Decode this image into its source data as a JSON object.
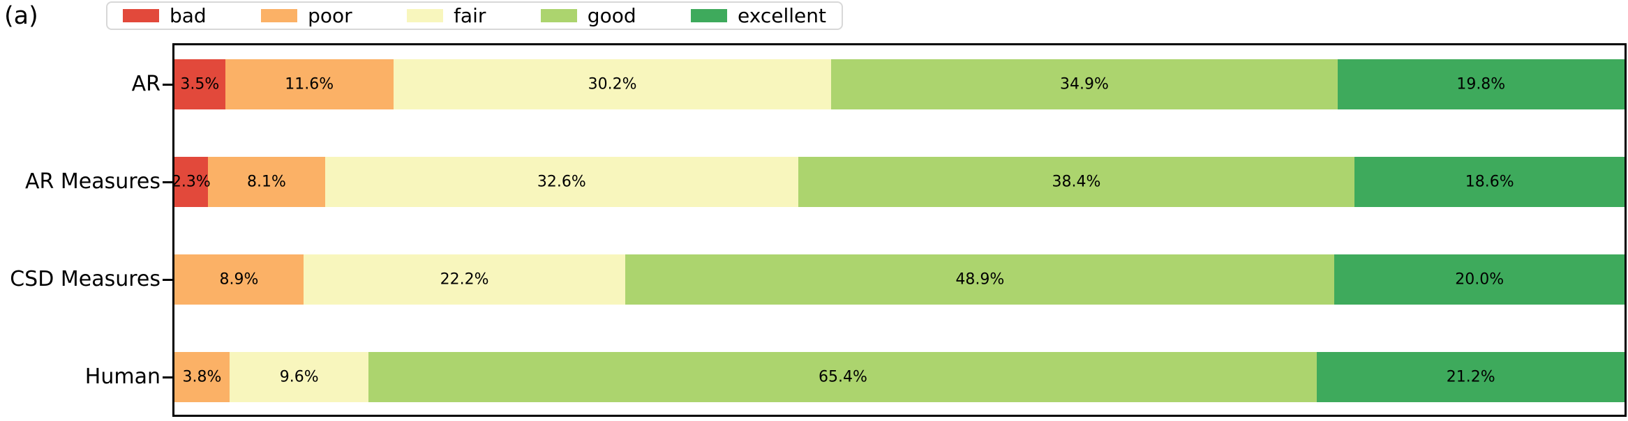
{
  "figure_label": "(a)",
  "colors": {
    "bad": "#e2493b",
    "poor": "#fbb166",
    "fair": "#f8f6bd",
    "good": "#acd46e",
    "excellent": "#3eaa5c",
    "axis_border": "#000000",
    "legend_border": "#d8d8d8",
    "label_text": "#000000"
  },
  "legend": {
    "entries": [
      "bad",
      "poor",
      "fair",
      "good",
      "excellent"
    ],
    "position": "top"
  },
  "chart_data": {
    "type": "bar",
    "orientation": "horizontal",
    "stacked": true,
    "title": "",
    "xlabel": "",
    "ylabel": "",
    "xlim": [
      0,
      100
    ],
    "grid": false,
    "legend_position": "top",
    "categories": [
      "AR",
      "AR Measures",
      "CSD Measures",
      "Human"
    ],
    "series": [
      {
        "name": "bad",
        "color": "#e2493b",
        "values": [
          3.5,
          2.3,
          0.0,
          0.0
        ],
        "labels": [
          "3.5%",
          "2.3%",
          "",
          ""
        ]
      },
      {
        "name": "poor",
        "color": "#fbb166",
        "values": [
          11.6,
          8.1,
          8.9,
          3.8
        ],
        "labels": [
          "11.6%",
          "8.1%",
          "8.9%",
          "3.8%"
        ]
      },
      {
        "name": "fair",
        "color": "#f8f6bd",
        "values": [
          30.2,
          32.6,
          22.2,
          9.6
        ],
        "labels": [
          "30.2%",
          "32.6%",
          "22.2%",
          "9.6%"
        ]
      },
      {
        "name": "good",
        "color": "#acd46e",
        "values": [
          34.9,
          38.4,
          48.9,
          65.4
        ],
        "labels": [
          "34.9%",
          "38.4%",
          "48.9%",
          "65.4%"
        ]
      },
      {
        "name": "excellent",
        "color": "#3eaa5c",
        "values": [
          19.8,
          18.6,
          20.0,
          21.2
        ],
        "labels": [
          "19.8%",
          "18.6%",
          "20.0%",
          "21.2%"
        ]
      }
    ]
  }
}
